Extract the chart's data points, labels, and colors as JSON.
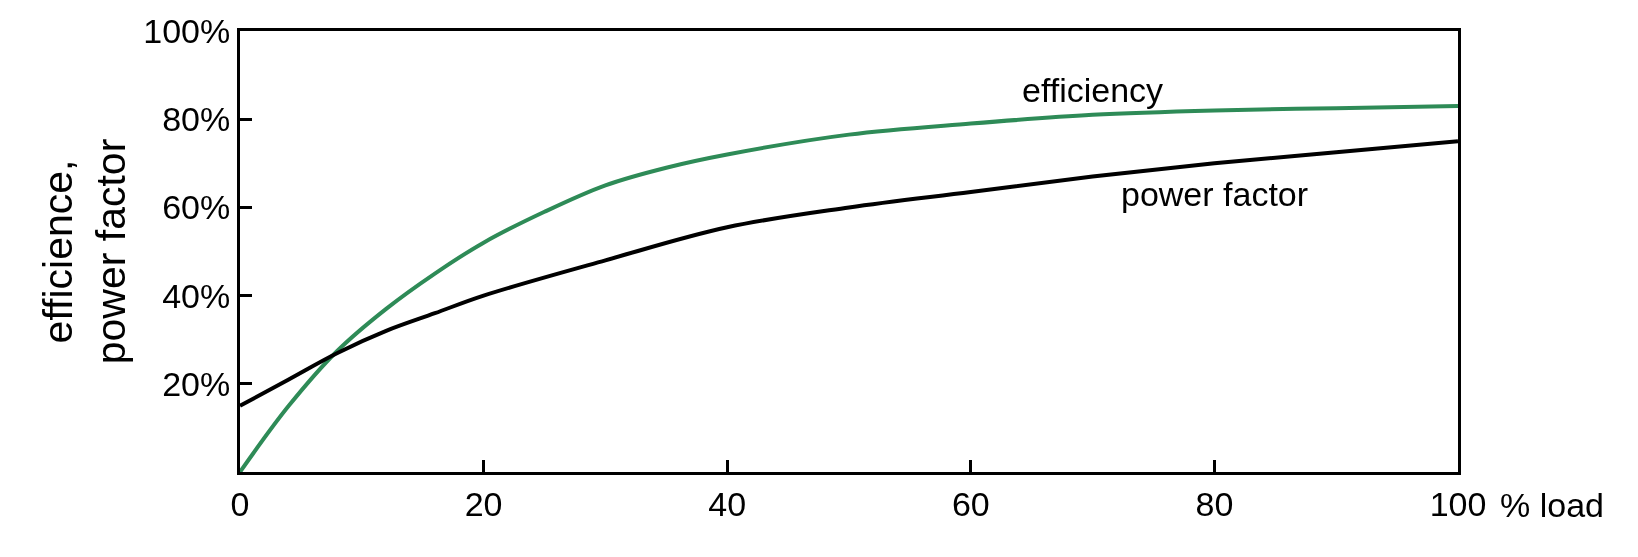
{
  "chart_data": {
    "type": "line",
    "xlabel": "% load",
    "ylabel": "efficience,\npower factor",
    "xlim": [
      0,
      100
    ],
    "ylim": [
      0,
      100
    ],
    "xticks": [
      0,
      20,
      40,
      60,
      80,
      100
    ],
    "yticks": [
      {
        "value": 20,
        "label": "20%"
      },
      {
        "value": 40,
        "label": "40%"
      },
      {
        "value": 60,
        "label": "60%"
      },
      {
        "value": 80,
        "label": "80%"
      },
      {
        "value": 100,
        "label": "100%"
      }
    ],
    "legend": false,
    "marker": "none",
    "line_style": "solid",
    "series": [
      {
        "name": "efficiency",
        "color": "#2e8b57",
        "x": [
          0,
          4,
          8,
          12,
          16,
          20,
          25,
          30,
          35,
          40,
          50,
          60,
          70,
          80,
          90,
          100
        ],
        "values": [
          0,
          15,
          27.5,
          37,
          45,
          52,
          59,
          65,
          69,
          72,
          76.5,
          79,
          81,
          82,
          82.5,
          83
        ]
      },
      {
        "name": "power factor",
        "color": "#000000",
        "x": [
          0,
          4,
          8,
          12,
          16,
          20,
          30,
          40,
          50,
          60,
          70,
          80,
          90,
          100
        ],
        "values": [
          15,
          21,
          27,
          32,
          36,
          40,
          48,
          55.5,
          60,
          63.5,
          67,
          70,
          72.5,
          75
        ]
      }
    ]
  }
}
